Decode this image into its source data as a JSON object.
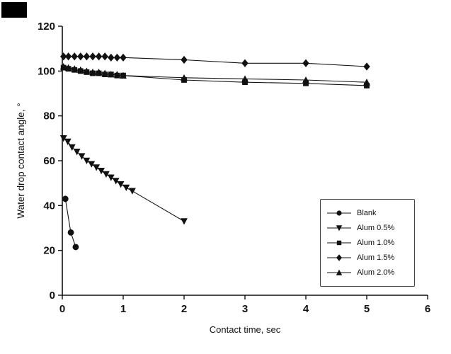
{
  "figure": {
    "background": "#ffffff",
    "ink_color": "#111111"
  },
  "chart_data": {
    "type": "scatter",
    "title": "",
    "xlabel": "Contact time, sec",
    "ylabel": "Water drop contact angle, °",
    "xlim": [
      0,
      6
    ],
    "ylim": [
      0,
      120
    ],
    "xticks": [
      0,
      1,
      2,
      3,
      4,
      5,
      6
    ],
    "yticks": [
      0,
      20,
      40,
      60,
      80,
      100,
      120
    ],
    "grid": false,
    "legend_position": "lower-right",
    "series": [
      {
        "name": "Blank",
        "marker": "circle",
        "points": [
          [
            0.05,
            43
          ],
          [
            0.14,
            28
          ],
          [
            0.22,
            21.5
          ]
        ]
      },
      {
        "name": "Alum 0.5%",
        "marker": "triangle-down",
        "points": [
          [
            0.02,
            70
          ],
          [
            0.09,
            68.5
          ],
          [
            0.16,
            66
          ],
          [
            0.24,
            64
          ],
          [
            0.32,
            62
          ],
          [
            0.4,
            60
          ],
          [
            0.48,
            58.5
          ],
          [
            0.56,
            57
          ],
          [
            0.64,
            55.5
          ],
          [
            0.72,
            54
          ],
          [
            0.8,
            52.5
          ],
          [
            0.88,
            51
          ],
          [
            0.96,
            49.5
          ],
          [
            1.05,
            48
          ],
          [
            1.15,
            46.5
          ],
          [
            2.0,
            33
          ]
        ]
      },
      {
        "name": "Alum 1.0%",
        "marker": "square",
        "points": [
          [
            0.02,
            101.5
          ],
          [
            0.1,
            101
          ],
          [
            0.2,
            100.5
          ],
          [
            0.3,
            100
          ],
          [
            0.4,
            99.5
          ],
          [
            0.5,
            99
          ],
          [
            0.6,
            99
          ],
          [
            0.7,
            98.5
          ],
          [
            0.8,
            98.5
          ],
          [
            0.9,
            98
          ],
          [
            1.0,
            98
          ],
          [
            2,
            96
          ],
          [
            3,
            95
          ],
          [
            4,
            94.5
          ],
          [
            5,
            93.5
          ]
        ]
      },
      {
        "name": "Alum 1.5%",
        "marker": "diamond",
        "points": [
          [
            0.02,
            106.5
          ],
          [
            0.1,
            106.5
          ],
          [
            0.2,
            106.5
          ],
          [
            0.3,
            106.5
          ],
          [
            0.4,
            106.5
          ],
          [
            0.5,
            106.5
          ],
          [
            0.6,
            106.5
          ],
          [
            0.7,
            106.5
          ],
          [
            0.8,
            106
          ],
          [
            0.9,
            106
          ],
          [
            1.0,
            106
          ],
          [
            2,
            105
          ],
          [
            3,
            103.5
          ],
          [
            4,
            103.5
          ],
          [
            5,
            102
          ]
        ]
      },
      {
        "name": "Alum 2.0%",
        "marker": "triangle-up",
        "points": [
          [
            0.02,
            102
          ],
          [
            0.1,
            101.5
          ],
          [
            0.2,
            101
          ],
          [
            0.3,
            100.5
          ],
          [
            0.4,
            100
          ],
          [
            0.5,
            99.5
          ],
          [
            0.6,
            99.5
          ],
          [
            0.7,
            99
          ],
          [
            0.8,
            98.5
          ],
          [
            0.9,
            98.5
          ],
          [
            1.0,
            98
          ],
          [
            2,
            97
          ],
          [
            3,
            96.5
          ],
          [
            4,
            96
          ],
          [
            5,
            95
          ]
        ]
      }
    ]
  }
}
